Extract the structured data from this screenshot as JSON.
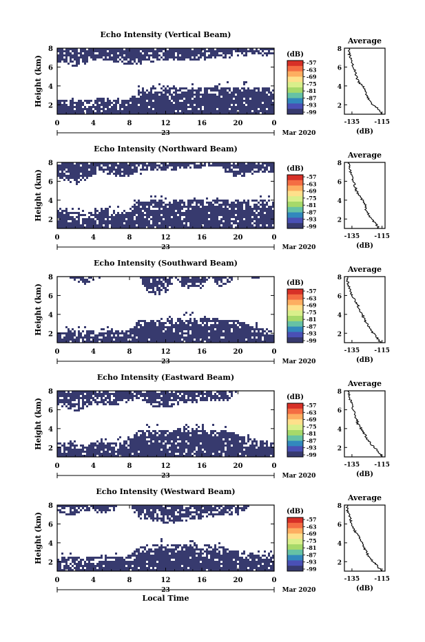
{
  "chart_data": [
    {
      "type": "heatmap",
      "title": "Echo Intensity (Vertical Beam)",
      "ylabel": "Height (km)",
      "yticks": [
        "2",
        "4",
        "6",
        "8"
      ],
      "xticks": [
        "0",
        "4",
        "8",
        "12",
        "16",
        "20",
        "0"
      ],
      "xlim": [
        0,
        24
      ],
      "ylim": [
        1,
        8
      ],
      "date_label": "23",
      "date_right": "Mar 2020",
      "colorbar_unit": "(dB)",
      "colorbar_labels": [
        "-57",
        "-63",
        "-69",
        "-75",
        "-81",
        "-87",
        "-93",
        "-99"
      ],
      "lower_layer_top": [
        2.6,
        2.5,
        2.4,
        2.5,
        2.6,
        2.8,
        2.6,
        2.5,
        2.6,
        3.6,
        3.7,
        3.8,
        3.8,
        3.8,
        3.9,
        3.9,
        3.8,
        3.8,
        3.9,
        3.9,
        3.9,
        3.9,
        3.9,
        3.8,
        3.7
      ],
      "upper_layer_bottom": [
        6.6,
        6.4,
        6.0,
        6.2,
        6.6,
        6.8,
        6.6,
        6.4,
        6.3,
        6.3,
        6.5,
        6.6,
        6.6,
        6.7,
        6.6,
        6.6,
        6.7,
        6.9,
        7.0,
        7.0,
        7.1,
        7.2,
        7.3,
        7.2,
        7.1
      ],
      "average": {
        "title": "Average",
        "xlabel": "(dB)",
        "xticks": [
          "-135",
          "-115"
        ],
        "yticks": [
          "2",
          "4",
          "6",
          "8"
        ],
        "xlim": [
          -140,
          -113
        ],
        "ylim": [
          1,
          8
        ],
        "profile": [
          {
            "h": 1.0,
            "v": -115
          },
          {
            "h": 1.5,
            "v": -117
          },
          {
            "h": 2.0,
            "v": -121
          },
          {
            "h": 2.5,
            "v": -124
          },
          {
            "h": 3.0,
            "v": -125
          },
          {
            "h": 3.5,
            "v": -126
          },
          {
            "h": 4.0,
            "v": -128
          },
          {
            "h": 4.5,
            "v": -131
          },
          {
            "h": 5.0,
            "v": -132
          },
          {
            "h": 5.5,
            "v": -133
          },
          {
            "h": 6.0,
            "v": -134
          },
          {
            "h": 6.5,
            "v": -135
          },
          {
            "h": 7.0,
            "v": -136
          },
          {
            "h": 7.5,
            "v": -137
          },
          {
            "h": 8.0,
            "v": -137
          }
        ]
      }
    },
    {
      "type": "heatmap",
      "title": "Echo Intensity (Northward Beam)",
      "ylabel": "Height (km)",
      "yticks": [
        "2",
        "4",
        "6",
        "8"
      ],
      "xticks": [
        "0",
        "4",
        "8",
        "12",
        "16",
        "20",
        "0"
      ],
      "xlim": [
        0,
        24
      ],
      "ylim": [
        1,
        8
      ],
      "date_label": "23",
      "date_right": "Mar 2020",
      "colorbar_unit": "(dB)",
      "colorbar_labels": [
        "-57",
        "-63",
        "-69",
        "-75",
        "-81",
        "-87",
        "-93",
        "-99"
      ],
      "lower_layer_top": [
        3.0,
        2.9,
        2.7,
        2.6,
        2.8,
        3.2,
        3.0,
        2.8,
        3.1,
        3.9,
        4.0,
        4.0,
        4.0,
        4.1,
        4.1,
        4.1,
        4.0,
        4.1,
        4.1,
        4.1,
        4.1,
        4.0,
        4.0,
        4.0,
        3.9
      ],
      "upper_layer_bottom": [
        6.4,
        6.0,
        5.6,
        6.0,
        6.6,
        7.0,
        6.6,
        6.4,
        6.6,
        6.7,
        6.9,
        7.1,
        7.1,
        7.2,
        7.3,
        7.2,
        7.4,
        7.5,
        7.4,
        6.6,
        6.4,
        6.6,
        6.8,
        7.0,
        6.9
      ],
      "average": {
        "title": "Average",
        "xlabel": "(dB)",
        "xticks": [
          "-135",
          "-115"
        ],
        "yticks": [
          "2",
          "4",
          "6",
          "8"
        ],
        "xlim": [
          -140,
          -113
        ],
        "ylim": [
          1,
          8
        ],
        "profile": [
          {
            "h": 1.0,
            "v": -117
          },
          {
            "h": 1.5,
            "v": -119
          },
          {
            "h": 2.0,
            "v": -122
          },
          {
            "h": 2.5,
            "v": -124
          },
          {
            "h": 3.0,
            "v": -126
          },
          {
            "h": 3.5,
            "v": -126
          },
          {
            "h": 4.0,
            "v": -128
          },
          {
            "h": 4.5,
            "v": -130
          },
          {
            "h": 5.0,
            "v": -132
          },
          {
            "h": 5.5,
            "v": -133
          },
          {
            "h": 6.0,
            "v": -134
          },
          {
            "h": 6.5,
            "v": -135
          },
          {
            "h": 7.0,
            "v": -136
          },
          {
            "h": 7.5,
            "v": -137
          },
          {
            "h": 8.0,
            "v": -137
          }
        ]
      }
    },
    {
      "type": "heatmap",
      "title": "Echo Intensity (Southward Beam)",
      "ylabel": "Height (km)",
      "yticks": [
        "2",
        "4",
        "6",
        "8"
      ],
      "xticks": [
        "0",
        "4",
        "8",
        "12",
        "16",
        "20",
        "0"
      ],
      "xlim": [
        0,
        24
      ],
      "ylim": [
        1,
        8
      ],
      "date_label": "23",
      "date_right": "Mar 2020",
      "colorbar_unit": "(dB)",
      "colorbar_labels": [
        "-57",
        "-63",
        "-69",
        "-75",
        "-81",
        "-87",
        "-93",
        "-99"
      ],
      "lower_layer_top": [
        2.2,
        2.2,
        2.3,
        2.4,
        2.2,
        2.1,
        2.2,
        2.3,
        2.2,
        3.3,
        3.4,
        3.5,
        3.5,
        3.6,
        3.7,
        3.7,
        3.6,
        3.6,
        3.5,
        3.4,
        3.3,
        3.0,
        2.6,
        2.4,
        2.3
      ],
      "upper_layer_bottom": [
        8.0,
        8.0,
        7.6,
        7.2,
        7.6,
        8.0,
        8.0,
        8.0,
        8.0,
        8.0,
        6.4,
        6.0,
        6.2,
        7.6,
        6.8,
        6.6,
        6.8,
        8.0,
        6.8,
        7.4,
        8.0,
        8.0,
        7.8,
        8.0,
        8.0
      ],
      "average": {
        "title": "Average",
        "xlabel": "(dB)",
        "xticks": [
          "-135",
          "-115"
        ],
        "yticks": [
          "2",
          "4",
          "6",
          "8"
        ],
        "xlim": [
          -140,
          -113
        ],
        "ylim": [
          1,
          8
        ],
        "profile": [
          {
            "h": 1.0,
            "v": -116
          },
          {
            "h": 1.5,
            "v": -118
          },
          {
            "h": 2.0,
            "v": -121
          },
          {
            "h": 2.5,
            "v": -123
          },
          {
            "h": 3.0,
            "v": -125
          },
          {
            "h": 3.5,
            "v": -127
          },
          {
            "h": 4.0,
            "v": -128
          },
          {
            "h": 4.5,
            "v": -130
          },
          {
            "h": 5.0,
            "v": -131
          },
          {
            "h": 5.5,
            "v": -133
          },
          {
            "h": 6.0,
            "v": -135
          },
          {
            "h": 6.5,
            "v": -136
          },
          {
            "h": 7.0,
            "v": -137
          },
          {
            "h": 7.5,
            "v": -138
          },
          {
            "h": 8.0,
            "v": -138
          }
        ]
      }
    },
    {
      "type": "heatmap",
      "title": "Echo Intensity (Eastward Beam)",
      "ylabel": "Height (km)",
      "yticks": [
        "2",
        "4",
        "6",
        "8"
      ],
      "xticks": [
        "0",
        "4",
        "8",
        "12",
        "16",
        "20",
        "0"
      ],
      "xlim": [
        0,
        24
      ],
      "ylim": [
        1,
        8
      ],
      "date_label": "23",
      "date_right": "Mar 2020",
      "colorbar_unit": "(dB)",
      "colorbar_labels": [
        "-57",
        "-63",
        "-69",
        "-75",
        "-81",
        "-87",
        "-93",
        "-99"
      ],
      "lower_layer_top": [
        2.6,
        2.5,
        2.4,
        2.3,
        2.5,
        2.7,
        2.5,
        2.6,
        2.9,
        3.8,
        3.9,
        3.9,
        3.9,
        3.9,
        4.0,
        4.0,
        3.9,
        3.9,
        3.9,
        3.8,
        3.6,
        3.2,
        2.8,
        2.7,
        2.6
      ],
      "upper_layer_bottom": [
        6.6,
        6.0,
        5.8,
        6.0,
        6.4,
        6.6,
        6.4,
        6.6,
        6.8,
        7.0,
        6.6,
        6.2,
        6.2,
        6.4,
        6.6,
        6.6,
        6.8,
        6.8,
        6.8,
        7.0,
        8.0,
        8.0,
        8.0,
        8.0,
        8.0
      ],
      "average": {
        "title": "Average",
        "xlabel": "(dB)",
        "xticks": [
          "-135",
          "-115"
        ],
        "yticks": [
          "2",
          "4",
          "6",
          "8"
        ],
        "xlim": [
          -140,
          -113
        ],
        "ylim": [
          1,
          8
        ],
        "profile": [
          {
            "h": 1.0,
            "v": -115
          },
          {
            "h": 1.5,
            "v": -117
          },
          {
            "h": 2.0,
            "v": -120
          },
          {
            "h": 2.5,
            "v": -123
          },
          {
            "h": 3.0,
            "v": -125
          },
          {
            "h": 3.5,
            "v": -127
          },
          {
            "h": 4.0,
            "v": -129
          },
          {
            "h": 4.5,
            "v": -131
          },
          {
            "h": 5.0,
            "v": -132
          },
          {
            "h": 5.5,
            "v": -133
          },
          {
            "h": 6.0,
            "v": -134
          },
          {
            "h": 6.5,
            "v": -135
          },
          {
            "h": 7.0,
            "v": -136
          },
          {
            "h": 7.5,
            "v": -137
          },
          {
            "h": 8.0,
            "v": -137
          }
        ]
      }
    },
    {
      "type": "heatmap",
      "title": "Echo Intensity (Westward Beam)",
      "ylabel": "Height (km)",
      "yticks": [
        "2",
        "4",
        "6",
        "8"
      ],
      "xticks": [
        "0",
        "4",
        "8",
        "12",
        "16",
        "20",
        "0"
      ],
      "xlim": [
        0,
        24
      ],
      "ylim": [
        1,
        8
      ],
      "date_label": "23",
      "date_right": "Mar 2020",
      "xlabel": "Local Time",
      "colorbar_unit": "(dB)",
      "colorbar_labels": [
        "-57",
        "-63",
        "-69",
        "-75",
        "-81",
        "-87",
        "-93",
        "-99"
      ],
      "lower_layer_top": [
        2.6,
        2.6,
        2.5,
        2.4,
        2.5,
        2.7,
        2.6,
        2.6,
        2.7,
        3.5,
        3.8,
        3.9,
        3.9,
        3.9,
        3.9,
        4.0,
        3.9,
        3.8,
        3.6,
        3.4,
        3.2,
        2.9,
        2.8,
        2.7,
        2.6
      ],
      "upper_layer_bottom": [
        7.2,
        7.0,
        7.0,
        7.4,
        7.4,
        7.0,
        7.2,
        8.0,
        8.0,
        6.6,
        6.4,
        6.2,
        6.0,
        6.0,
        6.2,
        6.4,
        6.6,
        6.6,
        6.8,
        7.0,
        7.0,
        7.6,
        8.0,
        8.0,
        8.0
      ],
      "average": {
        "title": "Average",
        "xlabel": "(dB)",
        "xticks": [
          "-135",
          "-115"
        ],
        "yticks": [
          "2",
          "4",
          "6",
          "8"
        ],
        "xlim": [
          -140,
          -113
        ],
        "ylim": [
          1,
          8
        ],
        "profile": [
          {
            "h": 1.0,
            "v": -115
          },
          {
            "h": 1.5,
            "v": -118
          },
          {
            "h": 2.0,
            "v": -121
          },
          {
            "h": 2.5,
            "v": -124
          },
          {
            "h": 3.0,
            "v": -125
          },
          {
            "h": 3.5,
            "v": -127
          },
          {
            "h": 4.0,
            "v": -128
          },
          {
            "h": 4.5,
            "v": -130
          },
          {
            "h": 5.0,
            "v": -132
          },
          {
            "h": 5.5,
            "v": -134
          },
          {
            "h": 6.0,
            "v": -135
          },
          {
            "h": 6.5,
            "v": -136
          },
          {
            "h": 7.0,
            "v": -137
          },
          {
            "h": 7.5,
            "v": -138
          },
          {
            "h": 8.0,
            "v": -138
          }
        ]
      }
    }
  ],
  "colors": {
    "echo": "#373a6e",
    "colorbar": [
      "#d73027",
      "#f46d43",
      "#fdae61",
      "#fee08b",
      "#d9ef8b",
      "#a6d96a",
      "#66c2a5",
      "#3288bd",
      "#4a50b5",
      "#373a6e"
    ],
    "profile_line": "#000000"
  }
}
